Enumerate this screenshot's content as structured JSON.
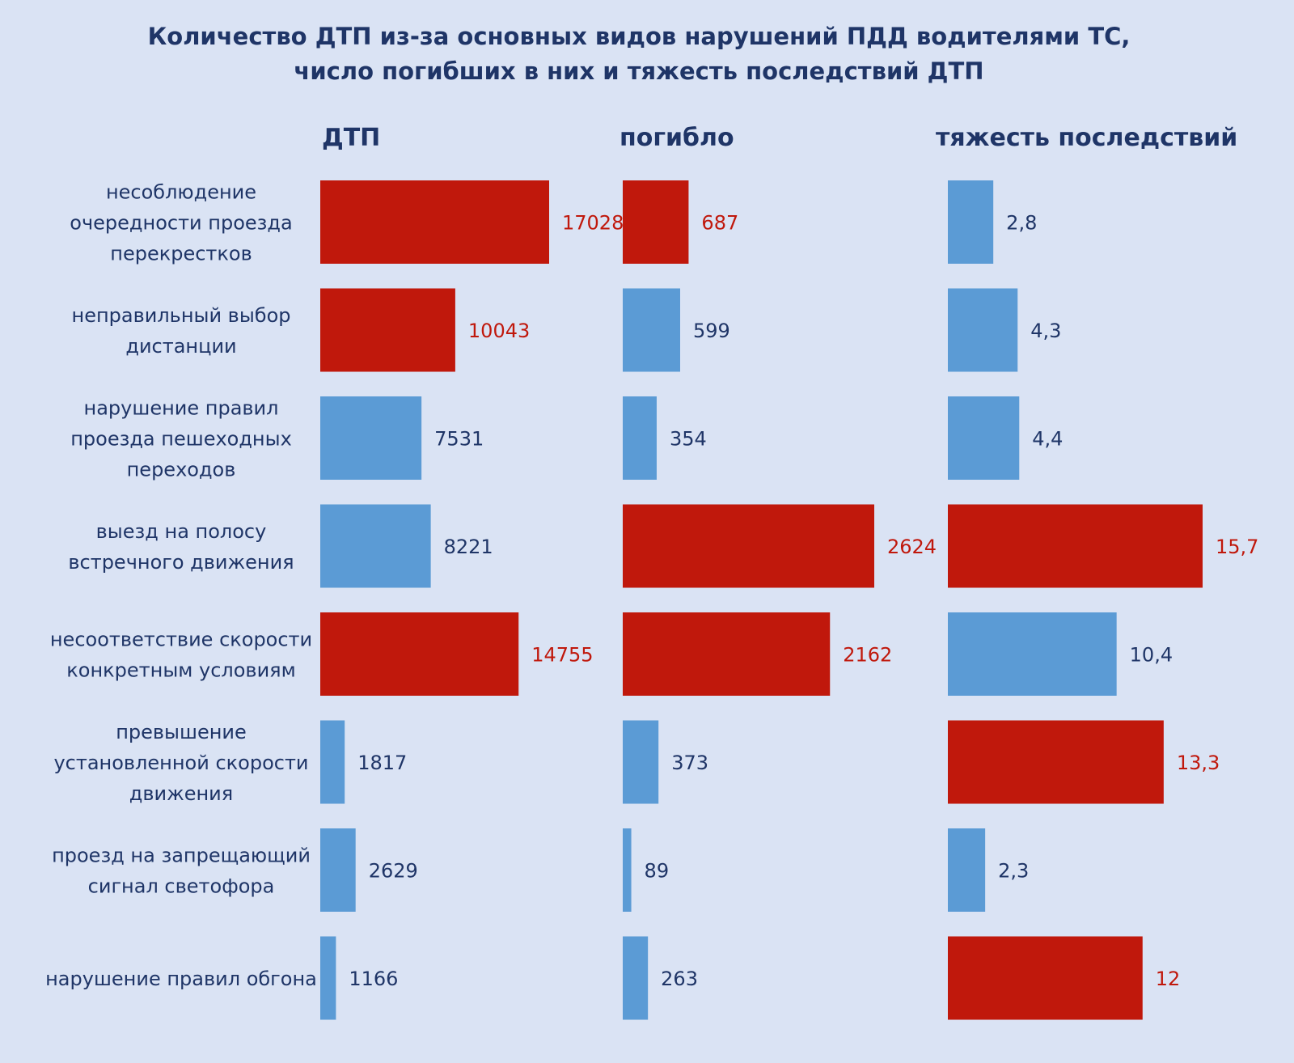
{
  "chart_data": {
    "type": "bar",
    "orientation": "horizontal",
    "title_lines": [
      "Количество ДТП из-за основных видов нарушений ПДД водителями ТС,",
      "число погибших в них и тяжесть последствий ДТП"
    ],
    "categories": [
      [
        "несоблюдение",
        "очередности проезда",
        "перекрестков"
      ],
      [
        "неправильный выбор",
        "дистанции"
      ],
      [
        "нарушение правил",
        "проезда пешеходных",
        "переходов"
      ],
      [
        "выезд на полосу",
        "встречного движения"
      ],
      [
        "несоответствие скорости",
        "конкретным условиям"
      ],
      [
        "превышение",
        "установленной скорости",
        "движения"
      ],
      [
        "проезд на запрещающий",
        "сигнал светофора"
      ],
      [
        "нарушение правил обгона"
      ]
    ],
    "series": [
      {
        "name": "ДТП",
        "values": [
          17028,
          10043,
          7531,
          8221,
          14755,
          1817,
          2629,
          1166
        ],
        "labels": [
          "17028",
          "10043",
          "7531",
          "8221",
          "14755",
          "1817",
          "2629",
          "1166"
        ],
        "highlight": [
          true,
          true,
          false,
          false,
          true,
          false,
          false,
          false
        ],
        "max": 17028
      },
      {
        "name": "погибло",
        "values": [
          687,
          599,
          354,
          2624,
          2162,
          373,
          89,
          263
        ],
        "labels": [
          "687",
          "599",
          "354",
          "2624",
          "2162",
          "373",
          "89",
          "263"
        ],
        "highlight": [
          true,
          false,
          false,
          true,
          true,
          false,
          false,
          false
        ],
        "max": 2624
      },
      {
        "name": "тяжесть последствий",
        "values": [
          2.8,
          4.3,
          4.4,
          15.7,
          10.4,
          13.3,
          2.3,
          12
        ],
        "labels": [
          "2,8",
          "4,3",
          "4,4",
          "15,7",
          "10,4",
          "13,3",
          "2,3",
          "12"
        ],
        "highlight": [
          false,
          false,
          false,
          true,
          false,
          true,
          false,
          true
        ],
        "max": 15.7
      }
    ],
    "colors": {
      "highlight_bar": "#c0180c",
      "normal_bar": "#5b9bd5",
      "highlight_label": "#c0180c",
      "normal_label": "#1f3567",
      "text": "#1f3567",
      "background": "#dae3f4"
    }
  }
}
